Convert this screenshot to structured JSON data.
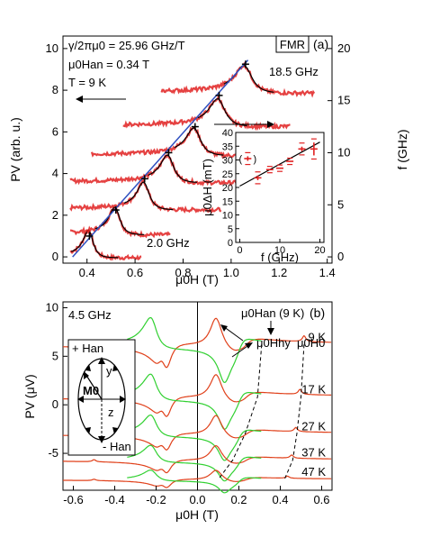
{
  "chart_data": [
    {
      "type": "line",
      "panel_label": "(a)",
      "xlabel": "μ0H (T)",
      "ylabel_left": "PV (arb. u.)",
      "ylabel_right": "f (GHz)",
      "xlim": [
        0.3,
        1.42
      ],
      "ylim_left": [
        -0.3,
        10.6
      ],
      "ylim_right": [
        -0.6,
        21.2
      ],
      "xticks": [
        0.4,
        0.6,
        0.8,
        1.0,
        1.2,
        1.4
      ],
      "xtick_labels": [
        "0.4",
        "0.6",
        "0.8",
        "1.0",
        "1.2",
        "1.4"
      ],
      "yticks_left": [
        0,
        2,
        4,
        6,
        8,
        10
      ],
      "ytick_labels_left": [
        "0",
        "2",
        "4",
        "6",
        "8",
        "10"
      ],
      "yticks_right": [
        0,
        5,
        10,
        15,
        20
      ],
      "ytick_labels_right": [
        "0",
        "5",
        "10",
        "15",
        "20"
      ],
      "annotations": {
        "gamma": "γ/2πμ0 = 25.96 GHz/T",
        "han": "μ0Han = 0.34 T",
        "temp": "T = 9 K",
        "fmr_box": "FMR",
        "top_freq": "18.5 GHz",
        "bottom_freq": "2.0 GHz"
      },
      "fit_line": {
        "x": [
          0.34,
          1.07
        ],
        "f_GHz": [
          0,
          18.9
        ],
        "color": "#3050c0"
      },
      "resonance_markers": {
        "x": [
          0.41,
          0.52,
          0.64,
          0.74,
          0.85,
          0.95,
          1.06
        ],
        "f_GHz": [
          2.0,
          4.5,
          7.5,
          10.0,
          12.5,
          15.5,
          18.5
        ]
      },
      "traces": {
        "offsets": [
          0,
          1.1,
          2.3,
          3.6,
          4.9,
          6.3,
          7.9
        ],
        "centers": [
          0.41,
          0.52,
          0.64,
          0.74,
          0.85,
          0.95,
          1.06
        ],
        "x_start": [
          0.33,
          0.33,
          0.33,
          0.33,
          0.42,
          0.55,
          0.71
        ],
        "x_end": [
          0.63,
          0.75,
          0.96,
          1.08,
          1.15,
          1.25,
          1.35
        ],
        "data_color": "#e02020",
        "fit_color": "#000000"
      },
      "inset": {
        "xlabel": "f (GHz)",
        "ylabel": "μ0ΔH (mT)",
        "xlim": [
          -1,
          21
        ],
        "ylim": [
          0,
          40
        ],
        "xticks": [
          0,
          10,
          20
        ],
        "xtick_labels": [
          "0",
          "10",
          "20"
        ],
        "yticks": [
          0,
          5,
          10,
          15,
          20,
          25,
          30,
          35,
          40
        ],
        "ytick_labels": [
          "0",
          "5",
          "10",
          "15",
          "20",
          "25",
          "30",
          "35",
          "40"
        ],
        "points": [
          {
            "f": 2.0,
            "dH": 30.5,
            "err": 1.5,
            "excluded": true
          },
          {
            "f": 4.5,
            "dH": 23.5,
            "err": 1.5
          },
          {
            "f": 7.5,
            "dH": 26.5,
            "err": 0.5
          },
          {
            "f": 10.0,
            "dH": 27.0,
            "err": 0.5
          },
          {
            "f": 12.5,
            "dH": 29.5,
            "err": 0.5
          },
          {
            "f": 15.5,
            "dH": 34.0,
            "err": 1.5
          },
          {
            "f": 18.5,
            "dH": 34.0,
            "err": 3.0
          }
        ],
        "fit": {
          "f": [
            0,
            20
          ],
          "dH": [
            20.5,
            36.5
          ]
        }
      }
    },
    {
      "type": "line",
      "panel_label": "(b)",
      "xlabel": "μ0H (T)",
      "ylabel": "PV (μV)",
      "xlim": [
        -0.65,
        0.65
      ],
      "ylim": [
        -8.8,
        10.6
      ],
      "xticks": [
        -0.6,
        -0.4,
        -0.2,
        0.0,
        0.2,
        0.4,
        0.6
      ],
      "xtick_labels": [
        "-0.6",
        "-0.4",
        "-0.2",
        "0.0",
        "0.2",
        "0.4",
        "0.6"
      ],
      "yticks": [
        -5,
        0,
        5,
        10
      ],
      "ytick_labels": [
        "-5",
        "0",
        "5",
        "10"
      ],
      "freq_label": "4.5 GHz",
      "series": [
        {
          "name": "9 K",
          "offset": 6.2,
          "scale": 1.0
        },
        {
          "name": "17 K",
          "offset": 0.8,
          "scale": 0.85
        },
        {
          "name": "27 K",
          "offset": -3.0,
          "scale": 0.7
        },
        {
          "name": "37 K",
          "offset": -5.7,
          "scale": 0.55
        },
        {
          "name": "47 K",
          "offset": -7.7,
          "scale": 0.35
        }
      ],
      "annotations": {
        "han": "μ0Han (9 K)",
        "hhy": "μ0Hhy",
        "h0": "μ0H0",
        "plus_han": "+ Han",
        "minus_han": "- Han",
        "m0": "M0",
        "y": "y",
        "z": "z"
      },
      "dashed_lines": {
        "hhy": {
          "x": [
            0.31,
            0.29,
            0.23,
            0.17,
            0.1
          ],
          "y": [
            6.2,
            0.8,
            -3.0,
            -5.7,
            -7.7
          ]
        },
        "h0": {
          "x": [
            0.515,
            0.5,
            0.48,
            0.46,
            0.42
          ],
          "y": [
            6.2,
            0.8,
            -3.0,
            -5.7,
            -7.7
          ]
        }
      },
      "colors": {
        "orange": "#e0401a",
        "green": "#30d030",
        "vline": "#000000"
      }
    }
  ]
}
